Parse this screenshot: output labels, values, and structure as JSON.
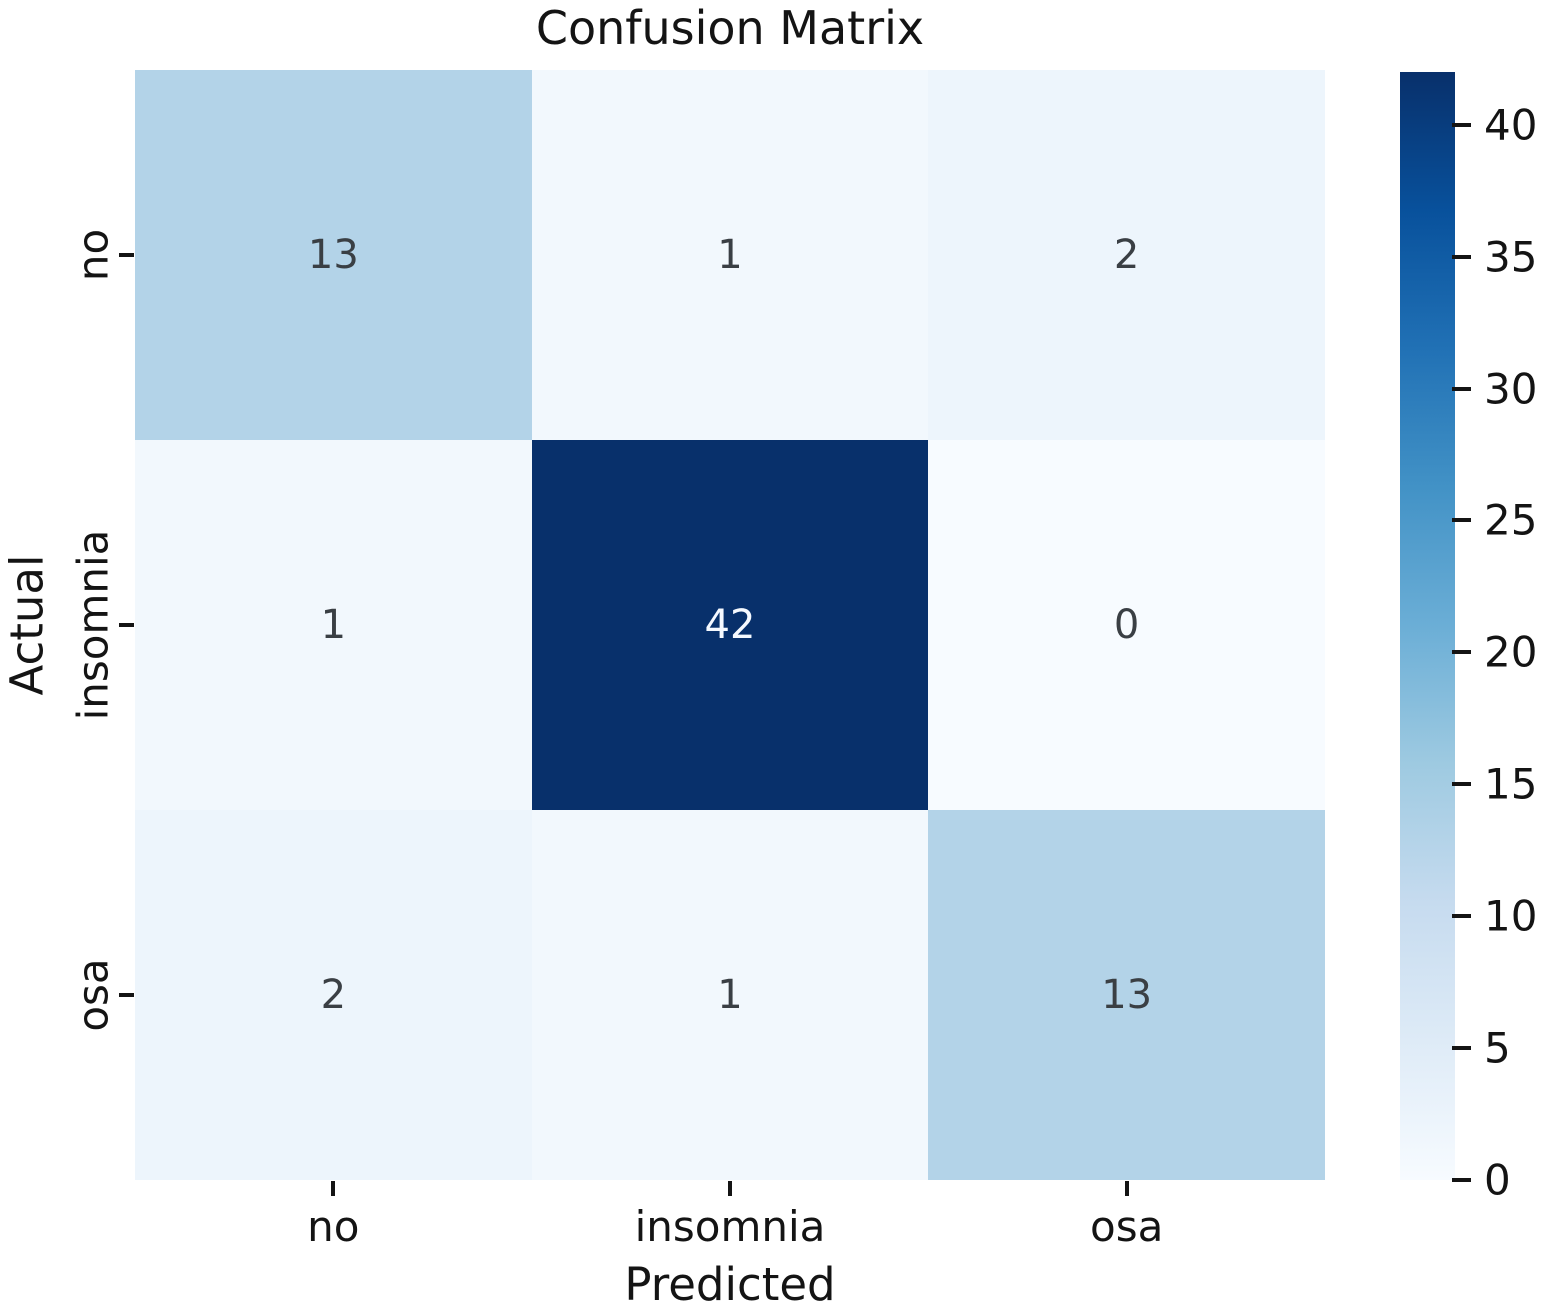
{
  "chart_data": {
    "type": "heatmap",
    "title": "Confusion Matrix",
    "xlabel": "Predicted",
    "ylabel": "Actual",
    "x_categories": [
      "no",
      "insomnia",
      "osa"
    ],
    "y_categories": [
      "no",
      "insomnia",
      "osa"
    ],
    "values": [
      [
        13,
        1,
        2
      ],
      [
        1,
        42,
        0
      ],
      [
        2,
        1,
        13
      ]
    ],
    "vmin": 0,
    "vmax": 42,
    "colormap": "Blues",
    "colormap_stops": [
      "#f7fbff",
      "#deebf7",
      "#c6dbef",
      "#9ecae1",
      "#6baed6",
      "#4292c6",
      "#2171b5",
      "#08519c",
      "#08306b"
    ],
    "colorbar_ticks": [
      0,
      5,
      10,
      15,
      20,
      25,
      30,
      35,
      40
    ],
    "annotation_dark_color": "#3a3f44",
    "annotation_light_color": "#f5f9ff",
    "text_color": "#141414",
    "background_color": "#ffffff",
    "grid": false,
    "legend_position": "right-colorbar",
    "ytick_rotation": -90
  }
}
